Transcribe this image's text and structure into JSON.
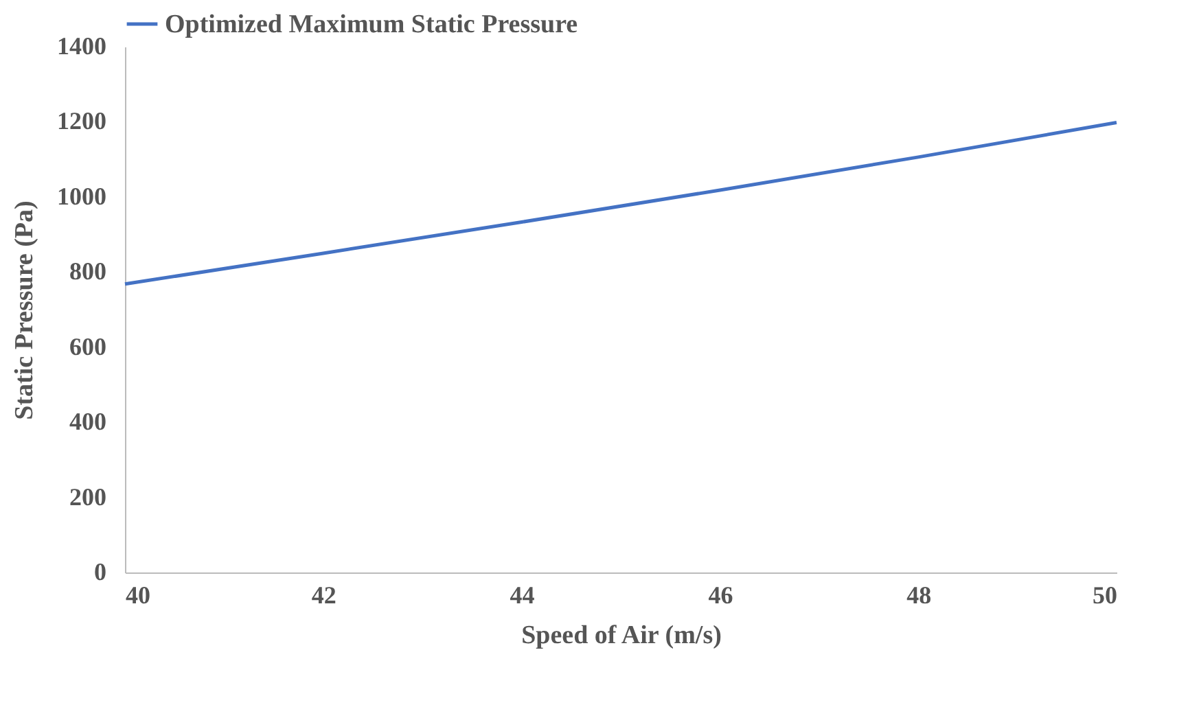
{
  "chart_data": {
    "type": "line",
    "xlabel": "Speed of Air (m/s)",
    "ylabel": "Static Pressure (Pa)",
    "x": [
      40,
      42,
      44,
      46,
      48,
      50
    ],
    "series": [
      {
        "name": "Optimized Maximum Static Pressure",
        "color": "#4472c4",
        "values": [
          768,
          850,
          933,
          1018,
          1106,
          1198
        ]
      }
    ],
    "xlim": [
      40,
      50
    ],
    "xticks": [
      40,
      42,
      44,
      46,
      48,
      50
    ],
    "ylim": [
      0,
      1400
    ],
    "yticks": [
      0,
      200,
      400,
      600,
      800,
      1000,
      1200,
      1400
    ],
    "grid": false,
    "legend": "top",
    "marker": "none",
    "line_style": "solid"
  }
}
